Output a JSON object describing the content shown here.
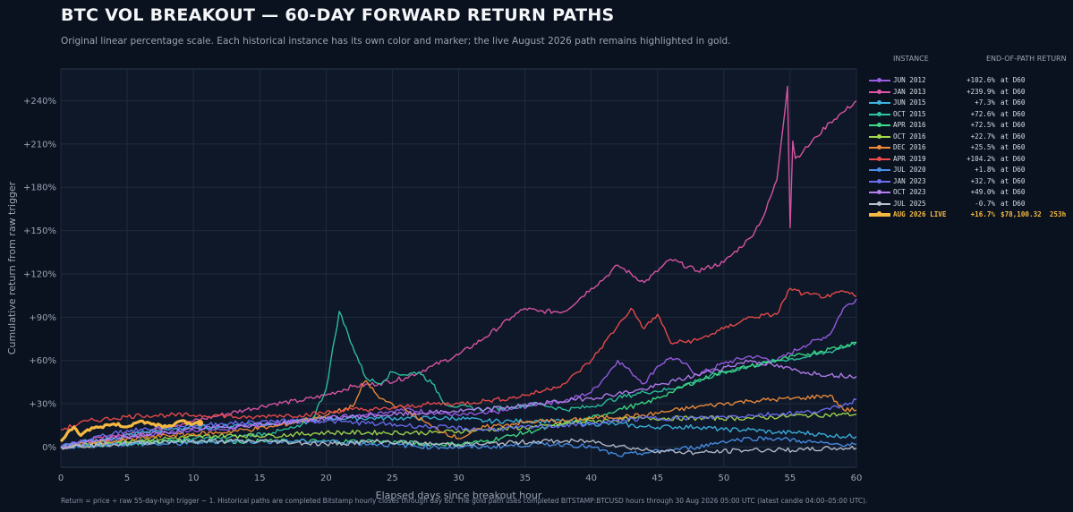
{
  "title": "BTC VOL BREAKOUT — 60-DAY FORWARD RETURN PATHS",
  "subtitle": "Original linear percentage scale. Each historical instance has its own color and marker; the live August 2026 path remains highlighted in gold.",
  "footer": "Return = price ÷ raw 55-day-high trigger − 1. Historical paths are completed Bitstamp hourly closes through day 60. The gold path uses completed BITSTAMP:BTCUSD hours through 30 Aug 2026 05:00 UTC (latest candle 04:00–05:00 UTC).",
  "legend": {
    "header_instance": "INSTANCE",
    "header_return": "END-OF-PATH RETURN",
    "items": [
      {
        "name": "JUN 2012",
        "ret": "+102.6%",
        "end": "at D60",
        "color": "#9b5de5"
      },
      {
        "name": "JAN 2013",
        "ret": "+239.9%",
        "end": "at D60",
        "color": "#e056a6"
      },
      {
        "name": "JUN 2015",
        "ret": "+7.3%",
        "end": "at D60",
        "color": "#3bb4e0"
      },
      {
        "name": "OCT 2015",
        "ret": "+72.6%",
        "end": "at D60",
        "color": "#2ec4a0"
      },
      {
        "name": "APR 2016",
        "ret": "+72.5%",
        "end": "at D60",
        "color": "#3ddc84"
      },
      {
        "name": "OCT 2016",
        "ret": "+22.7%",
        "end": "at D60",
        "color": "#a3d94a"
      },
      {
        "name": "DEC 2016",
        "ret": "+25.5%",
        "end": "at D60",
        "color": "#f28c38"
      },
      {
        "name": "APR 2019",
        "ret": "+104.2%",
        "end": "at D60",
        "color": "#ef4b4b"
      },
      {
        "name": "JUL 2020",
        "ret": "+1.8%",
        "end": "at D60",
        "color": "#4a8fe7"
      },
      {
        "name": "JAN 2023",
        "ret": "+32.7%",
        "end": "at D60",
        "color": "#6b6ef0"
      },
      {
        "name": "OCT 2023",
        "ret": "+49.0%",
        "end": "at D60",
        "color": "#b67ef0"
      },
      {
        "name": "JUL 2025",
        "ret": "-0.7%",
        "end": "at D60",
        "color": "#b8c0cc"
      },
      {
        "name": "AUG 2026 LIVE",
        "ret": "+16.7%",
        "end": "$78,100.32  253h",
        "color": "#f5b942",
        "live": true
      }
    ]
  },
  "chart_data": {
    "type": "line",
    "title": "BTC VOL BREAKOUT — 60-DAY FORWARD RETURN PATHS",
    "xlabel": "Elapsed days since breakout hour",
    "ylabel": "Cumulative return from raw trigger",
    "xlim": [
      0,
      60
    ],
    "ylim": [
      -14,
      262
    ],
    "xticks": [
      0,
      5,
      10,
      15,
      20,
      25,
      30,
      35,
      40,
      45,
      50,
      55,
      60
    ],
    "xtick_labels": [
      "0",
      "5",
      "10",
      "15",
      "20",
      "25",
      "30",
      "35",
      "40",
      "45",
      "50",
      "55",
      "60"
    ],
    "yticks": [
      0,
      30,
      60,
      90,
      120,
      150,
      180,
      210,
      240
    ],
    "ytick_labels": [
      "0%",
      "+30%",
      "+60%",
      "+90%",
      "+120%",
      "+150%",
      "+180%",
      "+210%",
      "+240%"
    ],
    "grid": true,
    "legend_position": "right",
    "series": [
      {
        "name": "JUN 2012",
        "color": "#9b5de5",
        "x": [
          0,
          2,
          4,
          6,
          8,
          10,
          12,
          14,
          16,
          18,
          20,
          22,
          24,
          26,
          28,
          30,
          32,
          34,
          36,
          38,
          40,
          41,
          42,
          43,
          44,
          45,
          46,
          47,
          48,
          50,
          52,
          54,
          56,
          58,
          59,
          60
        ],
        "y": [
          0,
          4,
          6,
          8,
          10,
          12,
          12,
          14,
          16,
          18,
          20,
          22,
          24,
          26,
          24,
          22,
          23,
          26,
          30,
          32,
          38,
          48,
          60,
          52,
          44,
          56,
          62,
          58,
          50,
          58,
          63,
          60,
          70,
          78,
          96,
          102.6
        ]
      },
      {
        "name": "JAN 2013",
        "color": "#e056a6",
        "x": [
          0,
          2,
          4,
          6,
          8,
          10,
          12,
          14,
          16,
          18,
          20,
          22,
          24,
          26,
          28,
          30,
          32,
          34,
          35,
          36,
          38,
          40,
          41,
          42,
          44,
          46,
          48,
          50,
          52,
          53,
          54,
          54.8,
          55,
          55.2,
          55.4,
          56,
          57,
          58,
          59,
          60
        ],
        "y": [
          0,
          4,
          8,
          10,
          14,
          18,
          22,
          26,
          30,
          32,
          36,
          42,
          44,
          48,
          56,
          64,
          76,
          90,
          96,
          94,
          94,
          110,
          117,
          126,
          114,
          130,
          122,
          128,
          145,
          160,
          185,
          250,
          152,
          212,
          200,
          205,
          215,
          225,
          232,
          239.9
        ]
      },
      {
        "name": "JUN 2015",
        "color": "#3bb4e0",
        "x": [
          0,
          2,
          4,
          6,
          8,
          10,
          12,
          14,
          16,
          18,
          20,
          22,
          24,
          26,
          28,
          30,
          32,
          34,
          36,
          38,
          40,
          42,
          44,
          46,
          48,
          50,
          52,
          54,
          56,
          58,
          60
        ],
        "y": [
          0,
          4,
          6,
          10,
          12,
          14,
          14,
          16,
          16,
          18,
          20,
          20,
          20,
          20,
          20,
          20,
          18,
          18,
          18,
          18,
          16,
          16,
          14,
          14,
          14,
          12,
          12,
          10,
          10,
          8,
          7.3
        ]
      },
      {
        "name": "OCT 2015",
        "color": "#2ec4a0",
        "x": [
          0,
          2,
          4,
          6,
          8,
          10,
          12,
          14,
          16,
          18,
          19,
          20,
          21,
          22,
          23,
          24,
          25,
          26,
          27,
          28,
          29,
          30,
          32,
          34,
          36,
          38,
          40,
          42,
          44,
          46,
          48,
          50,
          52,
          54,
          56,
          58,
          60
        ],
        "y": [
          0,
          2,
          2,
          4,
          4,
          6,
          6,
          8,
          10,
          14,
          20,
          40,
          94,
          70,
          48,
          44,
          52,
          50,
          52,
          44,
          30,
          28,
          26,
          28,
          30,
          26,
          28,
          34,
          38,
          40,
          46,
          52,
          56,
          60,
          62,
          66,
          72.6
        ]
      },
      {
        "name": "APR 2016",
        "color": "#3ddc84",
        "x": [
          0,
          4,
          8,
          12,
          16,
          20,
          24,
          28,
          30,
          32,
          34,
          36,
          38,
          40,
          42,
          44,
          46,
          48,
          50,
          52,
          54,
          56,
          58,
          60
        ],
        "y": [
          0,
          2,
          4,
          4,
          4,
          4,
          4,
          2,
          2,
          4,
          8,
          12,
          16,
          20,
          26,
          30,
          38,
          46,
          52,
          56,
          60,
          64,
          68,
          72.5
        ]
      },
      {
        "name": "OCT 2016",
        "color": "#a3d94a",
        "x": [
          0,
          4,
          8,
          12,
          16,
          20,
          24,
          28,
          32,
          36,
          40,
          44,
          48,
          52,
          56,
          60
        ],
        "y": [
          0,
          4,
          6,
          8,
          8,
          10,
          10,
          10,
          12,
          14,
          18,
          20,
          20,
          20,
          22,
          22.7
        ]
      },
      {
        "name": "DEC 2016",
        "color": "#f28c38",
        "x": [
          0,
          4,
          8,
          12,
          16,
          20,
          22,
          23,
          24,
          25,
          26,
          28,
          30,
          32,
          34,
          36,
          38,
          40,
          44,
          48,
          52,
          56,
          58,
          59,
          60
        ],
        "y": [
          0,
          4,
          8,
          10,
          14,
          22,
          28,
          46,
          34,
          30,
          26,
          14,
          6,
          14,
          16,
          18,
          18,
          20,
          22,
          28,
          32,
          34,
          36,
          26,
          25.5
        ]
      },
      {
        "name": "APR 2019",
        "color": "#ef4b4b",
        "x": [
          0,
          2,
          4,
          6,
          8,
          10,
          12,
          14,
          16,
          18,
          20,
          22,
          24,
          26,
          28,
          30,
          32,
          34,
          36,
          38,
          40,
          42,
          43,
          44,
          45,
          46,
          48,
          50,
          52,
          54,
          55,
          56,
          58,
          59,
          60
        ],
        "y": [
          12,
          18,
          20,
          22,
          22,
          22,
          22,
          20,
          22,
          22,
          24,
          26,
          26,
          28,
          30,
          30,
          32,
          34,
          38,
          44,
          60,
          84,
          96,
          82,
          92,
          72,
          74,
          82,
          90,
          92,
          110,
          106,
          104,
          108,
          104.2
        ]
      },
      {
        "name": "JUL 2020",
        "color": "#4a8fe7",
        "x": [
          0,
          4,
          8,
          12,
          16,
          20,
          24,
          28,
          32,
          36,
          38,
          40,
          42,
          44,
          46,
          48,
          50,
          52,
          54,
          56,
          58,
          60
        ],
        "y": [
          0,
          2,
          2,
          4,
          4,
          4,
          2,
          0,
          0,
          2,
          2,
          0,
          -6,
          -4,
          -2,
          0,
          4,
          6,
          6,
          4,
          2,
          1.8
        ]
      },
      {
        "name": "JAN 2023",
        "color": "#6b6ef0",
        "x": [
          0,
          4,
          8,
          12,
          16,
          20,
          24,
          28,
          32,
          36,
          40,
          44,
          48,
          52,
          56,
          58,
          60
        ],
        "y": [
          0,
          10,
          14,
          16,
          18,
          18,
          16,
          14,
          12,
          14,
          16,
          20,
          20,
          22,
          24,
          26,
          32.7
        ]
      },
      {
        "name": "OCT 2023",
        "color": "#b67ef0",
        "x": [
          0,
          4,
          8,
          12,
          16,
          20,
          24,
          28,
          32,
          36,
          40,
          44,
          48,
          52,
          56,
          58,
          60
        ],
        "y": [
          0,
          6,
          10,
          14,
          16,
          20,
          22,
          24,
          26,
          30,
          34,
          40,
          50,
          60,
          52,
          50,
          49
        ]
      },
      {
        "name": "JUL 2025",
        "color": "#b8c0cc",
        "x": [
          0,
          4,
          8,
          12,
          16,
          20,
          24,
          28,
          32,
          36,
          40,
          44,
          48,
          52,
          56,
          58,
          60
        ],
        "y": [
          0,
          2,
          4,
          4,
          4,
          2,
          4,
          2,
          2,
          4,
          4,
          -2,
          -4,
          -2,
          -2,
          -1,
          -0.7
        ]
      },
      {
        "name": "AUG 2026 LIVE",
        "color": "#f5b942",
        "live": true,
        "x": [
          0,
          0.5,
          1,
          1.5,
          2,
          3,
          4,
          5,
          6,
          7,
          8,
          9,
          10,
          10.5
        ],
        "y": [
          4,
          10,
          14,
          8,
          12,
          14,
          16,
          14,
          18,
          16,
          14,
          18,
          16,
          16.7
        ]
      }
    ]
  }
}
